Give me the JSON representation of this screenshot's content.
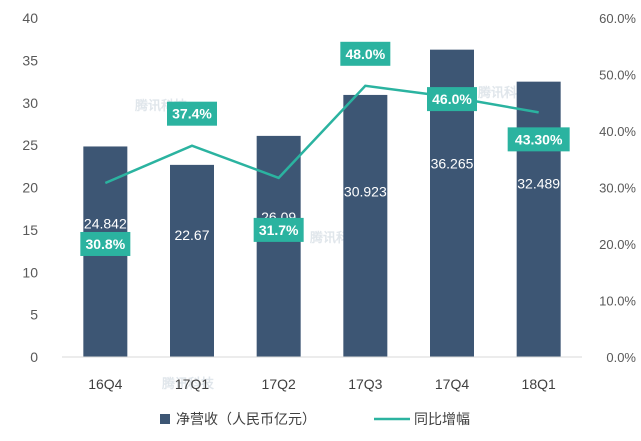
{
  "chart_data": {
    "type": "bar",
    "categories": [
      "16Q4",
      "17Q1",
      "17Q2",
      "17Q3",
      "17Q4",
      "18Q1"
    ],
    "series": [
      {
        "name": "净营收（人民币亿元）",
        "type": "bar",
        "axis": "left",
        "values": [
          24.842,
          22.67,
          26.09,
          30.923,
          36.265,
          32.489
        ],
        "labels": [
          "24.842",
          "22.67",
          "26.09",
          "30.923",
          "36.265",
          "32.489"
        ]
      },
      {
        "name": "同比增幅",
        "type": "line",
        "axis": "right",
        "values": [
          30.8,
          37.4,
          31.7,
          48.0,
          46.0,
          43.3
        ],
        "labels": [
          "30.8%",
          "37.4%",
          "31.7%",
          "48.0%",
          "46.0%",
          "43.30%"
        ]
      }
    ],
    "y_left": {
      "min": 0,
      "max": 40,
      "ticks": [
        "0",
        "5",
        "10",
        "15",
        "20",
        "25",
        "30",
        "35",
        "40"
      ]
    },
    "y_right": {
      "min": 0,
      "max": 60,
      "ticks": [
        "0.0%",
        "10.0%",
        "20.0%",
        "30.0%",
        "40.0%",
        "50.0%",
        "60.0%"
      ]
    },
    "legend_position": "bottom",
    "colors": {
      "bar": "#3d5674",
      "line": "#2bb3a0",
      "label_box": "#2bb3a0"
    }
  },
  "watermark": "腾讯科技"
}
